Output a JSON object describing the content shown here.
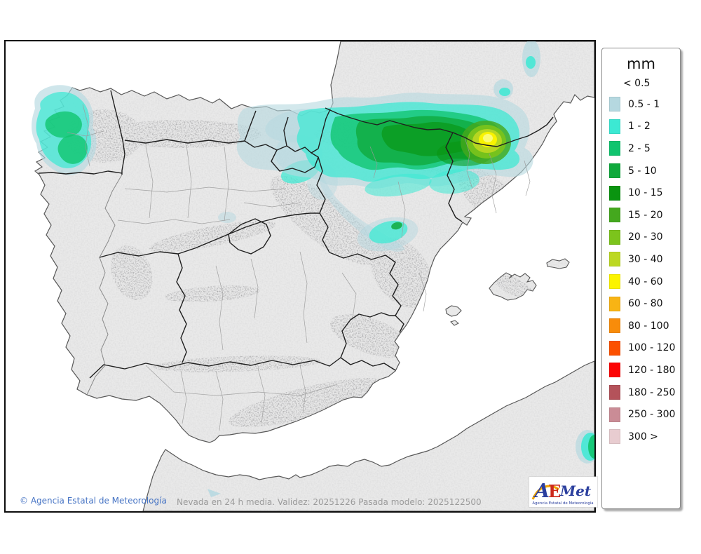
{
  "legend": {
    "title": "mm",
    "first_label": "< 0.5",
    "items": [
      {
        "label": "0.5 - 1",
        "color": "#b5d8e0"
      },
      {
        "label": "1 - 2",
        "color": "#3ce9d3"
      },
      {
        "label": "2 - 5",
        "color": "#10c46e"
      },
      {
        "label": "5 - 10",
        "color": "#0fa93c"
      },
      {
        "label": "10 - 15",
        "color": "#0a9410"
      },
      {
        "label": "15 - 20",
        "color": "#44a81e"
      },
      {
        "label": "20 - 30",
        "color": "#7cc41c"
      },
      {
        "label": "30 - 40",
        "color": "#bcd822"
      },
      {
        "label": "40 - 60",
        "color": "#fcf400"
      },
      {
        "label": "60 - 80",
        "color": "#f8b414"
      },
      {
        "label": "80 - 100",
        "color": "#f88c0a"
      },
      {
        "label": "100 - 120",
        "color": "#fc5000"
      },
      {
        "label": "120 - 180",
        "color": "#fc0404"
      },
      {
        "label": "180 - 250",
        "color": "#b4525a"
      },
      {
        "label": "250 - 300",
        "color": "#ca8c96"
      },
      {
        "label": "300 >",
        "color": "#e8ccd0"
      }
    ]
  },
  "footer": {
    "copyright": "© Agencia Estatal de Meteorología",
    "model_info": "Nevada en 24 h media. Validez: 20251226 Pasada modelo: 2025122500"
  },
  "logo": {
    "letter_a": "A",
    "letter_e": "E",
    "letter_met": "Met",
    "caption": "Agencia Estatal de Meteorología"
  },
  "map": {
    "variable": "Nevada en 24 h media",
    "colors": {
      "sea": "#ffffff",
      "land": "#e9e9e9",
      "coast_line": "#555555",
      "region_border": "#1f1f1f",
      "province_border": "#9a9a9a"
    }
  }
}
